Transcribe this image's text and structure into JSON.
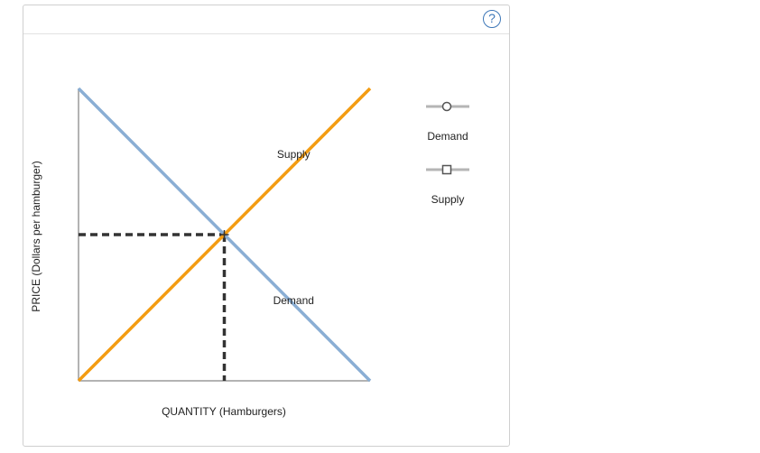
{
  "help": {
    "label": "?"
  },
  "chart_data": {
    "type": "line",
    "xlabel": "QUANTITY (Hamburgers)",
    "ylabel": "PRICE (Dollars per hamburger)",
    "xlim": [
      0,
      100
    ],
    "ylim": [
      0,
      100
    ],
    "grid": false,
    "series": [
      {
        "name": "Demand",
        "color": "#8aaed4",
        "marker": "circle",
        "x": [
          0,
          100
        ],
        "y": [
          100,
          0
        ],
        "label": "Demand",
        "label_at": [
          75,
          25
        ]
      },
      {
        "name": "Supply",
        "color": "#f39c12",
        "marker": "square",
        "x": [
          0,
          100
        ],
        "y": [
          0,
          100
        ],
        "label": "Supply",
        "label_at": [
          75,
          75
        ]
      }
    ],
    "equilibrium": {
      "x": 50,
      "y": 50
    },
    "legend_position": "right",
    "legend": [
      {
        "name": "Demand",
        "marker": "circle"
      },
      {
        "name": "Supply",
        "marker": "square"
      }
    ]
  }
}
